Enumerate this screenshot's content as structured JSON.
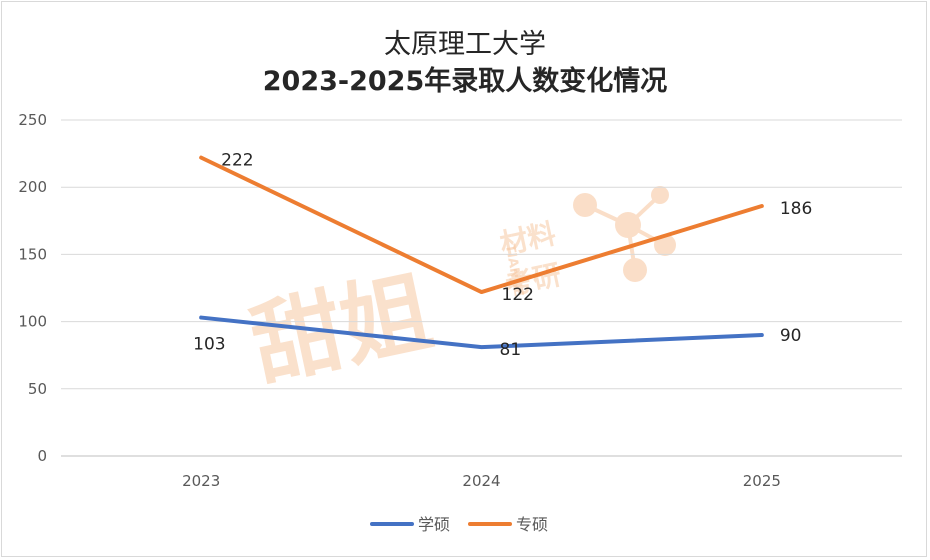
{
  "chart_data": {
    "type": "line",
    "title_line1": "太原理工大学",
    "title_line2": "2023-2025年录取人数变化情况",
    "categories": [
      "2023",
      "2024",
      "2025"
    ],
    "ylim": [
      0,
      250
    ],
    "yticks": [
      0,
      50,
      100,
      150,
      200,
      250
    ],
    "ytick_labels": [
      "0",
      "50",
      "100",
      "150",
      "200",
      "250"
    ],
    "grid": true,
    "legend_position": "bottom",
    "series": [
      {
        "name": "学硕",
        "values": [
          103,
          81,
          90
        ],
        "labels": [
          "103",
          "81",
          "90"
        ],
        "color": "#4472c4"
      },
      {
        "name": "专硕",
        "values": [
          222,
          122,
          186
        ],
        "labels": [
          "222",
          "122",
          "186"
        ],
        "color": "#ed7d31"
      }
    ]
  },
  "watermark": {
    "main_text": "甜姐",
    "side_text_1": "材料",
    "side_text_2": "考研",
    "side_text_vertical": "TIANJIE"
  }
}
